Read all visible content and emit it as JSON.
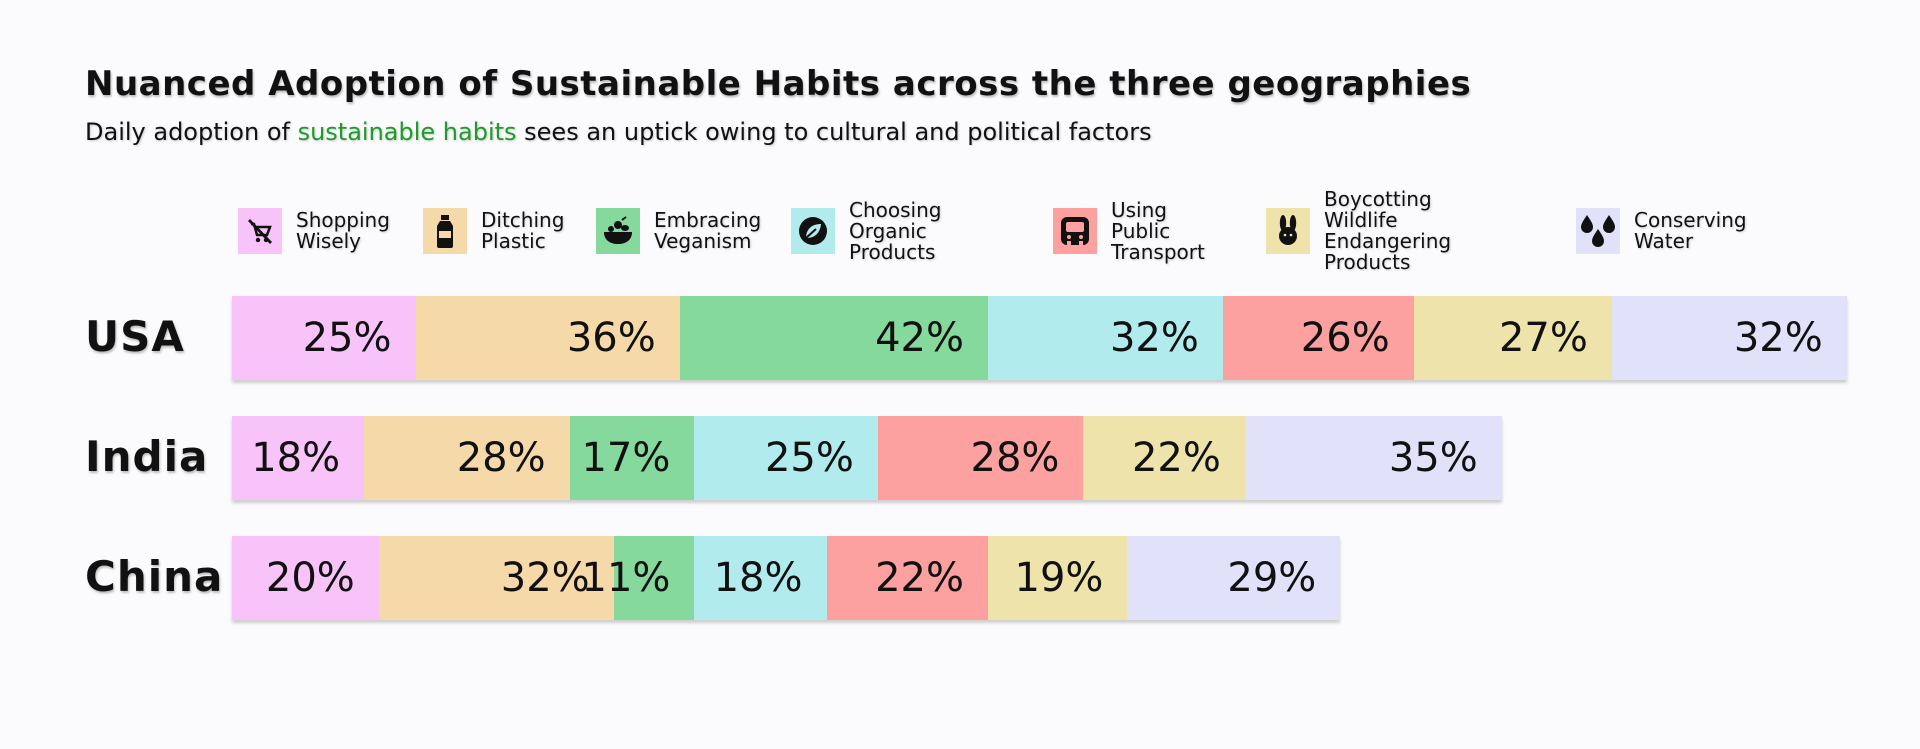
{
  "title": "Nuanced Adoption of Sustainable Habits across the three geographies",
  "subtitle": {
    "before": "Daily adoption of ",
    "highlight": "sustainable habits",
    "after": " sees an uptick owing to cultural and political factors",
    "highlight_color": "#1f9a2c"
  },
  "legend": [
    {
      "label": "Shopping\nWisely",
      "icon": "no-cart-icon",
      "color": "#f8c3f8"
    },
    {
      "label": "Ditching\nPlastic",
      "icon": "bottle-icon",
      "color": "#f6d9a9"
    },
    {
      "label": "Embracing\nVeganism",
      "icon": "fruit-bowl-icon",
      "color": "#86d99c"
    },
    {
      "label": "Choosing\nOrganic Products",
      "icon": "leaf-icon",
      "color": "#b2ebed"
    },
    {
      "label": "Using Public\nTransport",
      "icon": "bus-icon",
      "color": "#fda0a0"
    },
    {
      "label": "Boycotting Wildlife\nEndangering Products",
      "icon": "rabbit-icon",
      "color": "#efe3ac"
    },
    {
      "label": "Conserving Water",
      "icon": "water-drops-icon",
      "color": "#e1e1f9"
    }
  ],
  "chart_data": {
    "type": "bar",
    "orientation": "horizontal",
    "stacked": true,
    "categories": [
      "USA",
      "India",
      "China"
    ],
    "series": [
      {
        "name": "Shopping Wisely",
        "color": "#f8c3f8",
        "values": [
          25,
          18,
          20
        ]
      },
      {
        "name": "Ditching Plastic",
        "color": "#f6d9a9",
        "values": [
          36,
          28,
          32
        ]
      },
      {
        "name": "Embracing Veganism",
        "color": "#86d99c",
        "values": [
          42,
          17,
          11
        ]
      },
      {
        "name": "Choosing Organic Products",
        "color": "#b2ebed",
        "values": [
          32,
          25,
          18
        ]
      },
      {
        "name": "Using Public Transport",
        "color": "#fda0a0",
        "values": [
          26,
          28,
          22
        ]
      },
      {
        "name": "Boycotting Wildlife Endangering Products",
        "color": "#efe3ac",
        "values": [
          27,
          22,
          19
        ]
      },
      {
        "name": "Conserving Water",
        "color": "#e1e1f9",
        "values": [
          32,
          35,
          29
        ]
      }
    ],
    "value_format": "percent",
    "legend": "top",
    "grid": false
  }
}
